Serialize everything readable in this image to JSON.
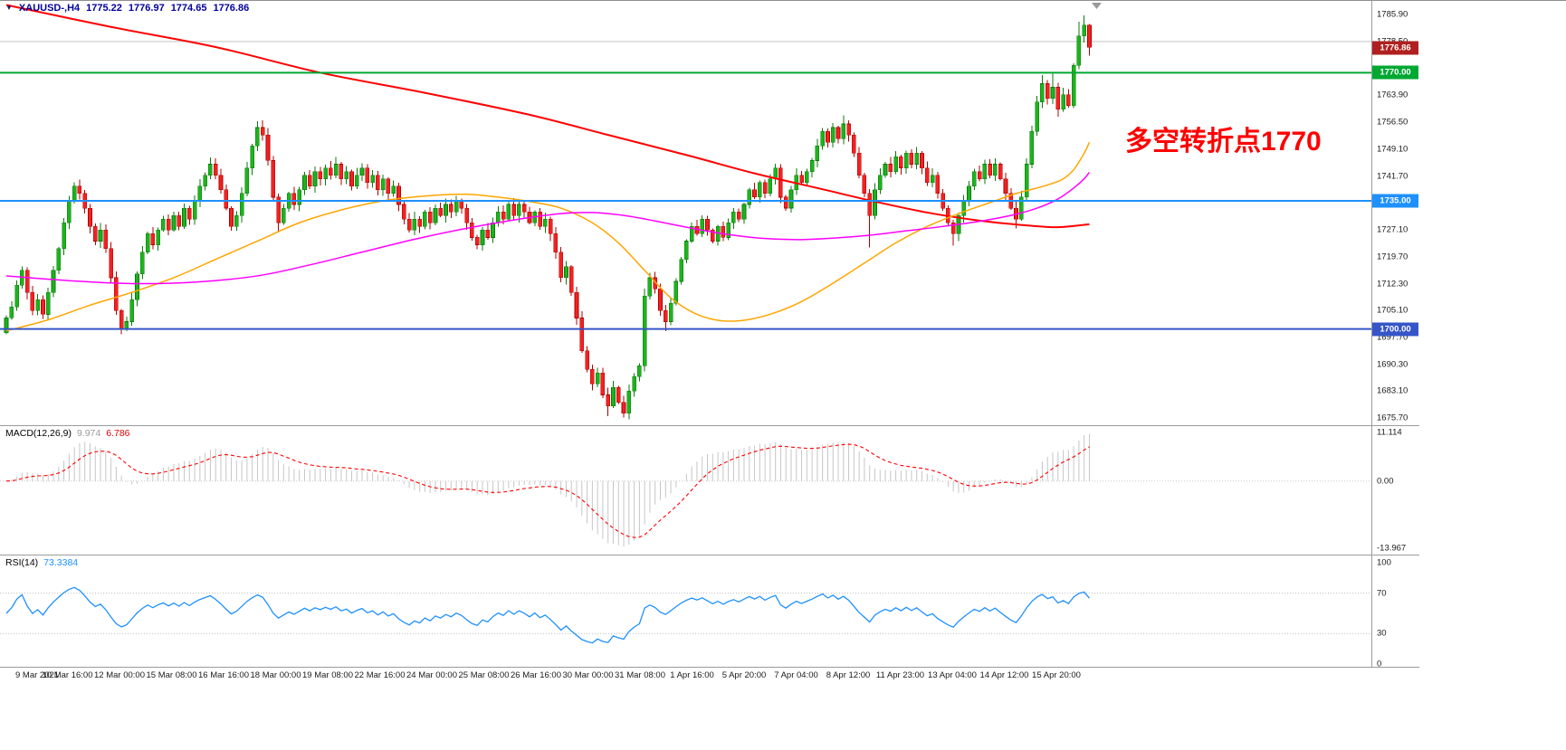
{
  "title": {
    "symbol_period": "XAUUSD-,H4",
    "open": "1775.22",
    "high": "1776.97",
    "low": "1774.65",
    "close": "1776.86"
  },
  "annotation": {
    "text": "多空转折点1770",
    "color": "#ff0000"
  },
  "colors": {
    "background": "#ffffff",
    "border": "#9b9b9b",
    "grid_line": "#c2c2c2",
    "title_text": "#00009c",
    "candle_up_fill": "#1db31d",
    "candle_up_stroke": "#0c7a0c",
    "candle_down_fill": "#f22222",
    "candle_down_stroke": "#b00000",
    "ma_red": "#ff0000",
    "ma_orange": "#ffa500",
    "ma_magenta": "#ff00ff",
    "hline_green": "#00a832",
    "hline_blue": "#1e90ff",
    "hline_navy": "#3555c8",
    "price_tag": "#b02020",
    "macd_hist": "#c6c6c6",
    "macd_signal": "#ff0000",
    "rsi_line": "#1e90ff",
    "rsi_level": "#bdbdbd",
    "axis_text": "#1a1a1a"
  },
  "chart_data": {
    "type": "candlestick",
    "symbol": "XAUUSD-",
    "timeframe": "H4",
    "title_ohlc": {
      "open": 1775.22,
      "high": 1776.97,
      "low": 1774.65,
      "close": 1776.86
    },
    "current_price": 1776.86,
    "price_axis_labels": [
      "1785.90",
      "1778.50",
      "1763.90",
      "1756.50",
      "1749.10",
      "1741.70",
      "1727.10",
      "1719.70",
      "1712.30",
      "1705.10",
      "1697.70",
      "1690.30",
      "1683.10",
      "1675.70"
    ],
    "price_tags": [
      {
        "text": "1776.86",
        "price": 1776.86,
        "type": "current",
        "name": "current-price-tag"
      },
      {
        "text": "1770.00",
        "price": 1770.0,
        "type": "green",
        "name": "price-tag-1770"
      },
      {
        "text": "1735.00",
        "price": 1735.0,
        "type": "blue",
        "name": "price-tag-1735"
      },
      {
        "text": "1700.00",
        "price": 1700.0,
        "type": "navy",
        "name": "price-tag-1700"
      }
    ],
    "time_labels": [
      "9 Mar 2021",
      "10 Mar 16:00",
      "12 Mar 00:00",
      "15 Mar 08:00",
      "16 Mar 16:00",
      "18 Mar 00:00",
      "19 Mar 08:00",
      "22 Mar 16:00",
      "24 Mar 00:00",
      "25 Mar 08:00",
      "26 Mar 16:00",
      "30 Mar 00:00",
      "31 Mar 08:00",
      "1 Apr 16:00",
      "5 Apr 20:00",
      "7 Apr 04:00",
      "8 Apr 12:00",
      "11 Apr 23:00",
      "13 Apr 04:00",
      "14 Apr 12:00",
      "15 Apr 20:00"
    ],
    "horizontal_lines": [
      {
        "price": 1778.5,
        "color_key": "grid_line",
        "width": 1,
        "layer": "under",
        "name": "grid-hline-1778"
      },
      {
        "price": 1770.0,
        "color_key": "hline_green",
        "width": 2,
        "layer": "over",
        "name": "hline-1770"
      },
      {
        "price": 1735.0,
        "color_key": "hline_blue",
        "width": 2,
        "layer": "over",
        "name": "hline-1735"
      },
      {
        "price": 1700.0,
        "color_key": "hline_navy",
        "width": 2,
        "layer": "over",
        "name": "hline-1700"
      }
    ],
    "candles": {
      "open_first": 1699,
      "closes": [
        1703,
        1706,
        1712,
        1716,
        1710,
        1705,
        1708,
        1704,
        1710,
        1716,
        1722,
        1729,
        1735,
        1739,
        1737,
        1733,
        1728,
        1724,
        1727,
        1722,
        1714,
        1705,
        1700,
        1702,
        1708,
        1715,
        1721,
        1726,
        1723,
        1727,
        1730,
        1727,
        1731,
        1728,
        1733,
        1730,
        1735,
        1739,
        1742,
        1745,
        1742,
        1738,
        1733,
        1728,
        1731,
        1737,
        1744,
        1750,
        1755,
        1753,
        1746,
        1736,
        1729,
        1733,
        1737,
        1734,
        1738,
        1742,
        1739,
        1743,
        1741,
        1744,
        1742,
        1745,
        1741,
        1743,
        1739,
        1742,
        1744,
        1740,
        1742,
        1738,
        1741,
        1737,
        1739,
        1734,
        1730,
        1727,
        1730,
        1728,
        1732,
        1729,
        1733,
        1731,
        1734,
        1732,
        1735,
        1733,
        1729,
        1725,
        1723,
        1727,
        1725,
        1729,
        1732,
        1730,
        1734,
        1731,
        1734,
        1732,
        1729,
        1732,
        1728,
        1730,
        1726,
        1721,
        1714,
        1717,
        1710,
        1703,
        1694,
        1689,
        1685,
        1688,
        1682,
        1679,
        1684,
        1680,
        1677,
        1683,
        1687,
        1690,
        1709,
        1714,
        1711,
        1705,
        1702,
        1707,
        1713,
        1719,
        1724,
        1728,
        1726,
        1730,
        1727,
        1724,
        1728,
        1725,
        1729,
        1732,
        1730,
        1734,
        1738,
        1736,
        1740,
        1737,
        1741,
        1744,
        1736,
        1733,
        1738,
        1742,
        1740,
        1743,
        1746,
        1750,
        1754,
        1751,
        1755,
        1752,
        1756,
        1753,
        1748,
        1742,
        1737,
        1731,
        1738,
        1742,
        1745,
        1743,
        1747,
        1744,
        1748,
        1745,
        1748,
        1744,
        1740,
        1742,
        1737,
        1733,
        1729,
        1726,
        1731,
        1735,
        1739,
        1743,
        1741,
        1745,
        1742,
        1745,
        1741,
        1737,
        1733,
        1730,
        1736,
        1745,
        1754,
        1762,
        1767,
        1763,
        1766,
        1760,
        1764,
        1761,
        1772,
        1780,
        1783,
        1776.9
      ],
      "wick_high": {
        "39": 1746.8,
        "48": 1756.8,
        "160": 1758.4,
        "198": 1769.3,
        "200": 1769.7,
        "205": 1783.9,
        "206": 1785.6,
        "207": 1783.3
      },
      "wick_low": {
        "22": 1698.6,
        "52": 1726.4,
        "90": 1721.8,
        "115": 1676.2,
        "118": 1675.8,
        "126": 1699.4,
        "165": 1722.3,
        "181": 1722.8,
        "193": 1727.4,
        "207": 1774.7
      }
    },
    "moving_averages": [
      {
        "name": "ma-slow-red",
        "color_key": "ma_red",
        "width": 2,
        "points": [
          [
            0,
            1788.5
          ],
          [
            20,
            1782.5
          ],
          [
            40,
            1777
          ],
          [
            60,
            1770
          ],
          [
            80,
            1764.5
          ],
          [
            100,
            1758.5
          ],
          [
            115,
            1753
          ],
          [
            130,
            1747.5
          ],
          [
            143,
            1742.5
          ],
          [
            155,
            1738.5
          ],
          [
            166,
            1734.8
          ],
          [
            176,
            1731.8
          ],
          [
            186,
            1729.6
          ],
          [
            195,
            1728.3
          ],
          [
            201,
            1727.8
          ],
          [
            207,
            1728.6
          ]
        ]
      },
      {
        "name": "ma-mid-orange",
        "color_key": "ma_orange",
        "width": 1.5,
        "points": [
          [
            0,
            1699.5
          ],
          [
            8,
            1702.5
          ],
          [
            16,
            1706.5
          ],
          [
            24,
            1710
          ],
          [
            32,
            1714
          ],
          [
            40,
            1719
          ],
          [
            48,
            1724
          ],
          [
            56,
            1729
          ],
          [
            64,
            1732.5
          ],
          [
            72,
            1735
          ],
          [
            80,
            1736.3
          ],
          [
            88,
            1736.8
          ],
          [
            94,
            1736
          ],
          [
            100,
            1734.8
          ],
          [
            106,
            1733
          ],
          [
            112,
            1729
          ],
          [
            117,
            1723.5
          ],
          [
            122,
            1716
          ],
          [
            127,
            1708.5
          ],
          [
            132,
            1704
          ],
          [
            137,
            1702.2
          ],
          [
            142,
            1702.6
          ],
          [
            147,
            1704.5
          ],
          [
            152,
            1707.5
          ],
          [
            158,
            1712.5
          ],
          [
            164,
            1718
          ],
          [
            170,
            1723.5
          ],
          [
            176,
            1728
          ],
          [
            182,
            1731.5
          ],
          [
            188,
            1734.5
          ],
          [
            193,
            1737
          ],
          [
            197,
            1738.5
          ],
          [
            200,
            1739.8
          ],
          [
            202,
            1741
          ],
          [
            204,
            1743.5
          ],
          [
            206,
            1748
          ],
          [
            207,
            1751
          ]
        ]
      },
      {
        "name": "ma-mid-magenta",
        "color_key": "ma_magenta",
        "width": 1.5,
        "points": [
          [
            0,
            1714.5
          ],
          [
            12,
            1713.2
          ],
          [
            24,
            1712.4
          ],
          [
            36,
            1712.8
          ],
          [
            48,
            1714.5
          ],
          [
            58,
            1717.5
          ],
          [
            68,
            1721
          ],
          [
            78,
            1724.5
          ],
          [
            88,
            1727.5
          ],
          [
            98,
            1730
          ],
          [
            106,
            1731.5
          ],
          [
            112,
            1731.8
          ],
          [
            118,
            1731
          ],
          [
            124,
            1729.5
          ],
          [
            130,
            1727.8
          ],
          [
            137,
            1726
          ],
          [
            144,
            1724.8
          ],
          [
            151,
            1724.4
          ],
          [
            158,
            1724.8
          ],
          [
            165,
            1725.6
          ],
          [
            172,
            1726.8
          ],
          [
            179,
            1728
          ],
          [
            186,
            1729.4
          ],
          [
            192,
            1731
          ],
          [
            197,
            1733
          ],
          [
            201,
            1735.5
          ],
          [
            204,
            1738.5
          ],
          [
            206,
            1741
          ],
          [
            207,
            1742.8
          ]
        ]
      }
    ],
    "indicators": {
      "macd": {
        "name": "MACD(12,26,9)",
        "params": [
          12,
          26,
          9
        ],
        "value_main": "9.974",
        "value_signal": "6.786",
        "axis": [
          "11.114",
          "0.00",
          "-13.967"
        ]
      },
      "rsi": {
        "name": "RSI(14)",
        "period": 14,
        "value": "73.3384",
        "axis": [
          "100",
          "70",
          "30",
          "0"
        ],
        "levels": [
          70,
          30
        ]
      }
    }
  }
}
